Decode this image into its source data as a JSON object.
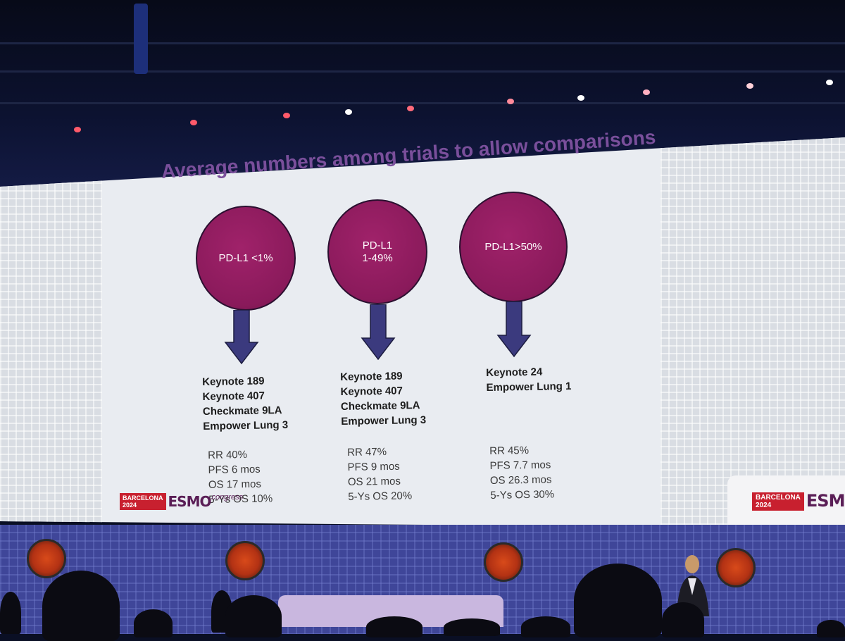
{
  "slide": {
    "title": "Average numbers among trials to allow comparisons",
    "groups": [
      {
        "circle_label": "PD-L1 <1%",
        "trials": [
          "Keynote 189",
          "Keynote 407",
          "Checkmate 9LA",
          "Empower Lung 3"
        ],
        "stats": [
          "RR 40%",
          "PFS 6 mos",
          "OS 17 mos",
          "5-Ys OS 10%"
        ]
      },
      {
        "circle_label": "PD-L1\n1-49%",
        "trials": [
          "Keynote 189",
          "Keynote 407",
          "Checkmate 9LA",
          "Empower Lung 3"
        ],
        "stats": [
          "RR 47%",
          "PFS 9 mos",
          "OS 21 mos",
          "5-Ys OS 20%"
        ]
      },
      {
        "circle_label": "PD-L1>50%",
        "trials": [
          "Keynote 24",
          "Empower Lung 1"
        ],
        "stats": [
          "RR 45%",
          "PFS 7.7 mos",
          "OS 26.3 mos",
          "5-Ys OS 30%"
        ]
      }
    ]
  },
  "logo": {
    "city": "BARCELONA",
    "year": "2024",
    "brand": "ESMO",
    "suffix": "congress"
  },
  "colors": {
    "title": "#7a4f9b",
    "circle": "#8a1a5b",
    "arrow": "#3b3a7e",
    "logo_red": "#c8202f",
    "stage": "#3f4699"
  }
}
